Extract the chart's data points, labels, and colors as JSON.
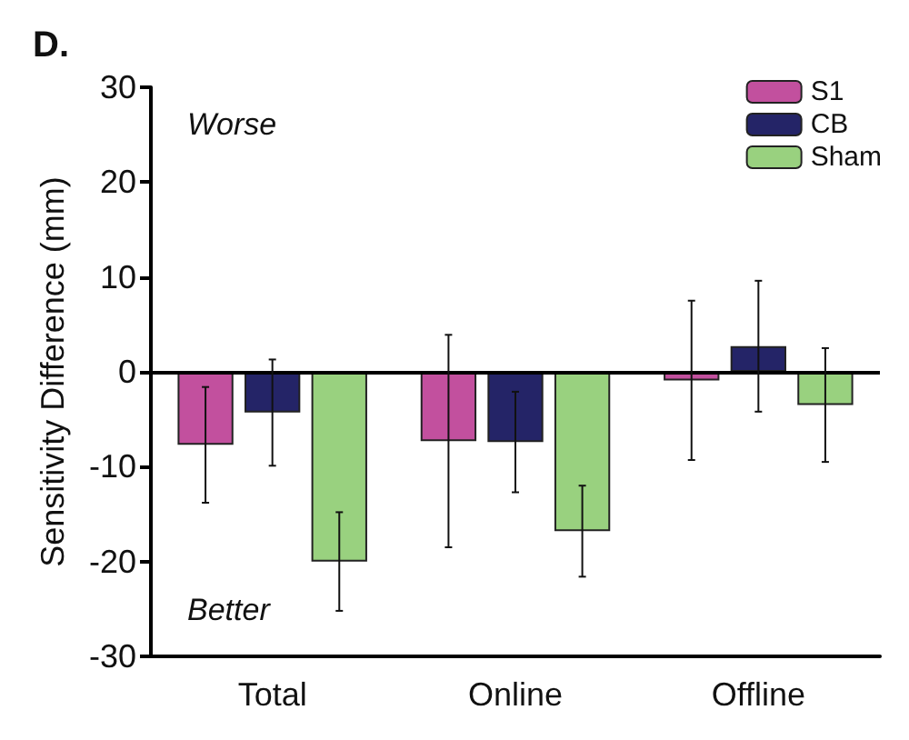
{
  "chart_data": {
    "type": "bar",
    "title": "D.",
    "ylabel": "Sensitivity Difference (mm)",
    "categories": [
      "Total",
      "Online",
      "Offline"
    ],
    "series": [
      {
        "name": "S1",
        "color": "#c2509e",
        "values": [
          -7.7,
          -7.3,
          -0.9
        ],
        "errors": [
          6.1,
          11.2,
          8.4
        ]
      },
      {
        "name": "CB",
        "color": "#242467",
        "values": [
          -4.3,
          -7.4,
          2.7
        ],
        "errors": [
          5.6,
          5.3,
          6.9
        ]
      },
      {
        "name": "Sham",
        "color": "#99d17f",
        "values": [
          -20,
          -16.8,
          -3.5
        ],
        "errors": [
          5.2,
          4.8,
          6.0
        ]
      }
    ],
    "ylim": [
      -30,
      30
    ],
    "yticks": [
      -30,
      -20,
      -10,
      0,
      10,
      20,
      30
    ],
    "ref_lines": [
      {
        "axis": "y",
        "value": 0
      }
    ],
    "annotations": [
      "Worse",
      "Better"
    ],
    "legend": "top right",
    "grid": false
  }
}
